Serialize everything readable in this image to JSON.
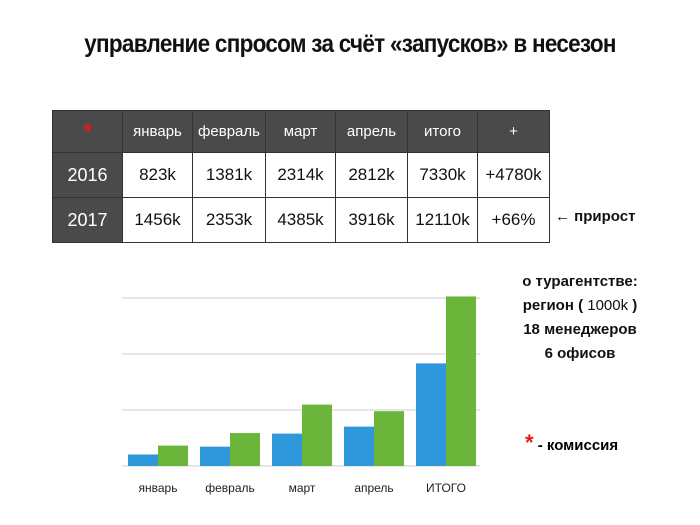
{
  "title": "управление спросом за счёт «запусков» в несезон",
  "table": {
    "corner": "*",
    "headers": [
      "январь",
      "февраль",
      "март",
      "апрель",
      "итого",
      "+"
    ],
    "rows": [
      {
        "year": "2016",
        "cells": [
          "823k",
          "1381k",
          "2314k",
          "2812k",
          "7330k",
          "+4780k"
        ]
      },
      {
        "year": "2017",
        "cells": [
          "1456k",
          "2353k",
          "4385k",
          "3916k",
          "12110k",
          "+66%"
        ]
      }
    ]
  },
  "growth_label": "← прирост",
  "agency": {
    "line1": "о турагентстве:",
    "line2_pre": "регион (",
    "line2_val": "1000k",
    "line2_post": ")",
    "line3": "18 менеджеров",
    "line4": "6 офисов"
  },
  "legend": {
    "star": "*",
    "text": " - комиссия"
  },
  "colors": {
    "series_2016": "#2f97db",
    "series_2017": "#6bb53a",
    "star": "#e21b1b",
    "header_bg": "#4a4a4a"
  },
  "chart_data": {
    "type": "bar",
    "categories": [
      "январь",
      "февраль",
      "март",
      "апрель",
      "ИТОГО"
    ],
    "series": [
      {
        "values": [
          823,
          1381,
          2314,
          2812,
          7330
        ]
      },
      {
        "values": [
          1456,
          2353,
          4385,
          3916,
          12110
        ]
      }
    ],
    "ylim": [
      0,
      12000
    ],
    "grid": true,
    "legend": "none"
  }
}
